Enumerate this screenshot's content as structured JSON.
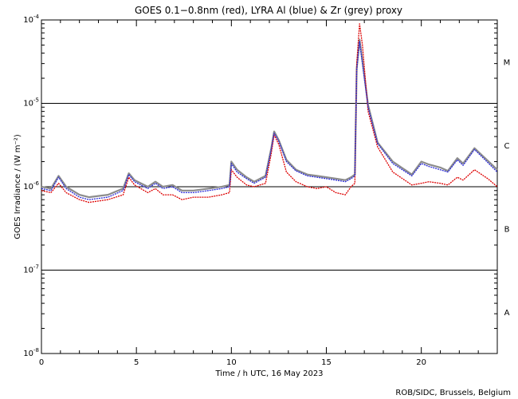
{
  "chart_data": {
    "type": "line",
    "title": "GOES 0.1−0.8nm (red), LYRA Al (blue) & Zr (grey) proxy",
    "xlabel": "Time / h UTC, 16 May 2023",
    "ylabel": "GOES Irradiance / (W m⁻²)",
    "xlim": [
      0,
      24
    ],
    "ylim_log10": [
      -8,
      -4
    ],
    "x_ticks": [
      0,
      5,
      10,
      15,
      20
    ],
    "x_tick_labels": [
      "0",
      "5",
      "10",
      "15",
      "20"
    ],
    "y_ticks_log10": [
      -8,
      -7,
      -6,
      -5,
      -4
    ],
    "y_tick_labels": [
      {
        "base": "10",
        "exp": "-8"
      },
      {
        "base": "10",
        "exp": "-7"
      },
      {
        "base": "10",
        "exp": "-6"
      },
      {
        "base": "10",
        "exp": "-5"
      },
      {
        "base": "10",
        "exp": "-4"
      }
    ],
    "flare_class_lines_log10": [
      -7,
      -6,
      -5
    ],
    "flare_classes": [
      {
        "label": "A",
        "log10_mid": -7.5
      },
      {
        "label": "B",
        "log10_mid": -6.5
      },
      {
        "label": "C",
        "log10_mid": -5.5
      },
      {
        "label": "M",
        "log10_mid": -4.5
      }
    ],
    "series": [
      {
        "name": "GOES 0.1-0.8nm",
        "color": "#dd0000",
        "x": [
          0,
          0.5,
          0.9,
          1.3,
          2.0,
          2.5,
          3.5,
          4.3,
          4.6,
          4.9,
          5.6,
          6.0,
          6.4,
          6.9,
          7.4,
          8.0,
          8.8,
          9.5,
          9.9,
          10.0,
          10.3,
          10.8,
          11.2,
          11.8,
          12.1,
          12.25,
          12.5,
          12.9,
          13.4,
          14.0,
          14.5,
          15.0,
          15.5,
          16.0,
          16.3,
          16.5,
          16.6,
          16.75,
          16.9,
          17.2,
          17.7,
          18.5,
          19.5,
          20.0,
          20.4,
          21.0,
          21.4,
          21.9,
          22.2,
          22.8,
          23.5,
          24.0
        ],
        "y": [
          9e-07,
          8.5e-07,
          1.1e-06,
          8.5e-07,
          7e-07,
          6.5e-07,
          7e-07,
          8e-07,
          1.3e-06,
          1.05e-06,
          8.5e-07,
          9.5e-07,
          8e-07,
          8e-07,
          7e-07,
          7.5e-07,
          7.5e-07,
          8e-07,
          8.5e-07,
          1.6e-06,
          1.3e-06,
          1.05e-06,
          1e-06,
          1.1e-06,
          2.5e-06,
          4.2e-06,
          3.2e-06,
          1.5e-06,
          1.15e-06,
          1e-06,
          9.5e-07,
          1e-06,
          8.5e-07,
          8e-07,
          1e-06,
          1.1e-06,
          3e-05,
          9e-05,
          5e-05,
          8e-06,
          3e-06,
          1.5e-06,
          1.05e-06,
          1.1e-06,
          1.15e-06,
          1.1e-06,
          1.05e-06,
          1.3e-06,
          1.2e-06,
          1.6e-06,
          1.25e-06,
          1e-06
        ]
      },
      {
        "name": "LYRA Al proxy",
        "color": "#2a2ad8",
        "x": [
          0,
          0.5,
          0.9,
          1.3,
          2.0,
          2.5,
          3.5,
          4.3,
          4.6,
          4.9,
          5.6,
          6.0,
          6.4,
          6.9,
          7.4,
          8.0,
          8.8,
          9.5,
          9.9,
          10.0,
          10.3,
          10.8,
          11.2,
          11.8,
          12.1,
          12.25,
          12.5,
          12.9,
          13.4,
          14.0,
          14.5,
          15.0,
          15.5,
          16.0,
          16.3,
          16.5,
          16.6,
          16.75,
          16.9,
          17.2,
          17.7,
          18.5,
          19.5,
          20.0,
          20.4,
          21.0,
          21.4,
          21.9,
          22.2,
          22.8,
          23.5,
          24.0
        ],
        "y": [
          9.5e-07,
          9e-07,
          1.3e-06,
          9.5e-07,
          7.5e-07,
          7e-07,
          7.5e-07,
          9e-07,
          1.4e-06,
          1.15e-06,
          9.5e-07,
          1.1e-06,
          9.5e-07,
          1e-06,
          8.5e-07,
          8.5e-07,
          9e-07,
          9.5e-07,
          1e-06,
          1.9e-06,
          1.5e-06,
          1.25e-06,
          1.1e-06,
          1.3e-06,
          2.8e-06,
          4.4e-06,
          3.5e-06,
          2e-06,
          1.55e-06,
          1.35e-06,
          1.3e-06,
          1.25e-06,
          1.2e-06,
          1.15e-06,
          1.25e-06,
          1.35e-06,
          2.5e-05,
          5.5e-05,
          3e-05,
          9e-06,
          3.3e-06,
          1.9e-06,
          1.35e-06,
          1.9e-06,
          1.75e-06,
          1.6e-06,
          1.5e-06,
          2.1e-06,
          1.8e-06,
          2.8e-06,
          1.95e-06,
          1.5e-06
        ]
      },
      {
        "name": "LYRA Zr proxy",
        "color": "#8c8c8c",
        "x": [
          0,
          0.5,
          0.9,
          1.3,
          2.0,
          2.5,
          3.5,
          4.3,
          4.6,
          4.9,
          5.6,
          6.0,
          6.4,
          6.9,
          7.4,
          8.0,
          8.8,
          9.5,
          9.9,
          10.0,
          10.3,
          10.8,
          11.2,
          11.8,
          12.1,
          12.25,
          12.5,
          12.9,
          13.4,
          14.0,
          14.5,
          15.0,
          15.5,
          16.0,
          16.3,
          16.5,
          16.6,
          16.75,
          16.9,
          17.2,
          17.7,
          18.5,
          19.5,
          20.0,
          20.4,
          21.0,
          21.4,
          21.9,
          22.2,
          22.8,
          23.5,
          24.0
        ],
        "y": [
          1e-06,
          9.5e-07,
          1.35e-06,
          1e-06,
          8e-07,
          7.5e-07,
          8e-07,
          9.5e-07,
          1.45e-06,
          1.2e-06,
          1e-06,
          1.15e-06,
          1e-06,
          1.05e-06,
          9e-07,
          9e-07,
          9.5e-07,
          1e-06,
          1.05e-06,
          2e-06,
          1.6e-06,
          1.3e-06,
          1.15e-06,
          1.35e-06,
          2.9e-06,
          4.6e-06,
          3.6e-06,
          2.1e-06,
          1.6e-06,
          1.4e-06,
          1.35e-06,
          1.3e-06,
          1.25e-06,
          1.2e-06,
          1.3e-06,
          1.4e-06,
          2.6e-05,
          5.8e-05,
          3.2e-05,
          9.5e-06,
          3.4e-06,
          2e-06,
          1.4e-06,
          2e-06,
          1.85e-06,
          1.7e-06,
          1.55e-06,
          2.2e-06,
          1.9e-06,
          2.9e-06,
          2.05e-06,
          1.6e-06
        ]
      }
    ],
    "credit": "ROB/SIDC, Brussels, Belgium"
  }
}
